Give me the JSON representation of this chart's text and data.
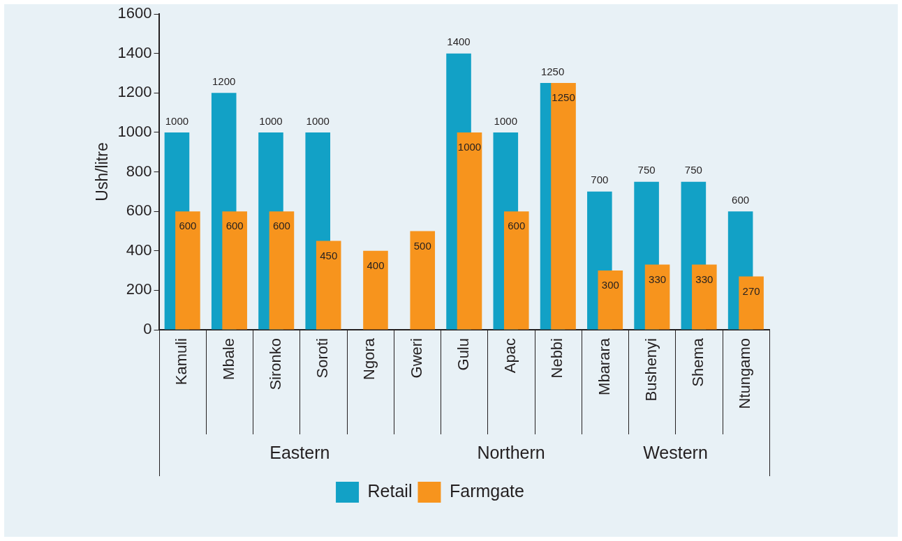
{
  "chart_data": {
    "type": "bar",
    "ylabel": "Ush/litre",
    "categories": [
      "Kamuli",
      "Mbale",
      "Sironko",
      "Soroti",
      "Ngora",
      "Gweri",
      "Gulu",
      "Apac",
      "Nebbi",
      "Mbarara",
      "Bushenyi",
      "Shema",
      "Ntungamo"
    ],
    "series": [
      {
        "name": "Retail",
        "color": "#12a1c6",
        "values": [
          1000,
          1200,
          1000,
          1000,
          null,
          null,
          1400,
          1000,
          1250,
          700,
          750,
          750,
          600
        ]
      },
      {
        "name": "Farmgate",
        "color": "#f7941d",
        "values": [
          600,
          600,
          600,
          450,
          400,
          500,
          1000,
          600,
          1250,
          300,
          330,
          330,
          270
        ]
      }
    ],
    "ylim": [
      0,
      1600
    ],
    "yticks": [
      0,
      200,
      400,
      600,
      800,
      1000,
      1200,
      1400,
      1600
    ],
    "data_labels": true,
    "legend": "bottom",
    "grid": false,
    "annotations": [
      "Eastern",
      "Northern",
      "Western"
    ]
  }
}
